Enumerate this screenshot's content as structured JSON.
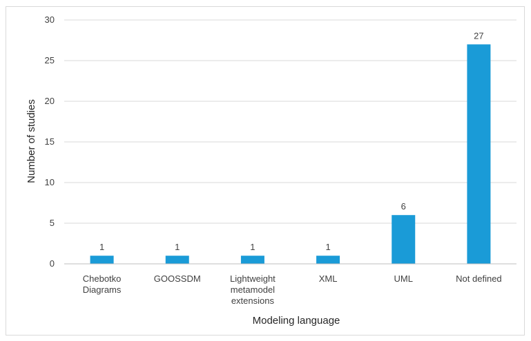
{
  "chart_data": {
    "type": "bar",
    "title": "",
    "xlabel": "Modeling language",
    "ylabel": "Number of studies",
    "categories": [
      [
        "Chebotko",
        "Diagrams"
      ],
      [
        "GOOSSDM"
      ],
      [
        "Lightweight",
        "metamodel",
        "extensions"
      ],
      [
        "XML"
      ],
      [
        "UML"
      ],
      [
        "Not defined"
      ]
    ],
    "values": [
      1,
      1,
      1,
      1,
      6,
      27
    ],
    "ylim": [
      0,
      30
    ],
    "yticks": [
      0,
      5,
      10,
      15,
      20,
      25,
      30
    ],
    "grid": true,
    "legend": "none",
    "bar_color": "#1a9bd7",
    "grid_color": "#d9d9d9",
    "axis_color": "#bfbfbf"
  }
}
